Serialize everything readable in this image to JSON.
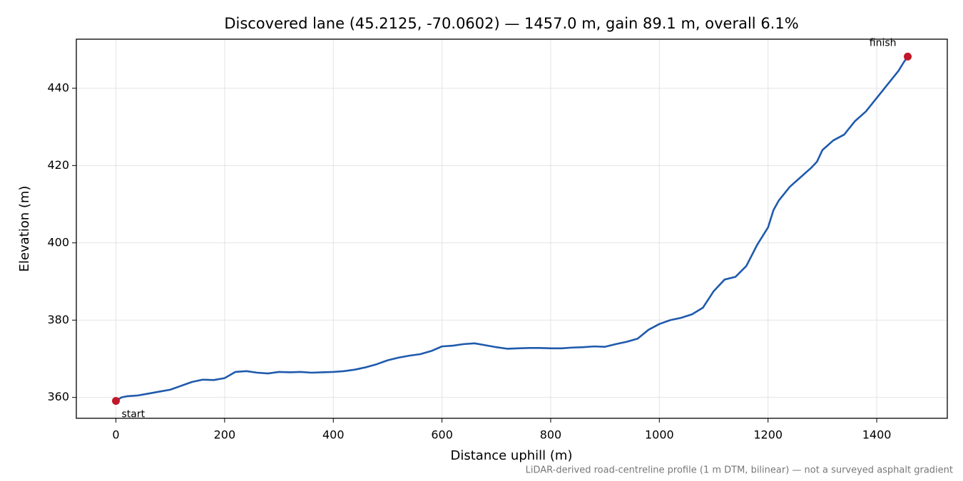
{
  "chart_data": {
    "type": "line",
    "title": "Discovered lane (45.2125, -70.0602) — 1457.0 m, gain 89.1 m, overall 6.1%",
    "x_label": "Distance uphill (m)",
    "y_label": "Elevation (m)",
    "note": "LiDAR-derived road-centreline profile (1 m DTM, bilinear) — not a surveyed asphalt gradient",
    "color": "#1f5aad",
    "grid": true,
    "x": [
      0,
      10,
      20,
      40,
      60,
      80,
      100,
      120,
      140,
      160,
      180,
      200,
      220,
      240,
      260,
      280,
      300,
      320,
      340,
      360,
      380,
      400,
      420,
      440,
      460,
      480,
      500,
      520,
      540,
      560,
      580,
      600,
      620,
      640,
      660,
      680,
      700,
      720,
      740,
      760,
      780,
      800,
      820,
      840,
      860,
      880,
      900,
      920,
      940,
      960,
      980,
      1000,
      1020,
      1040,
      1060,
      1080,
      1100,
      1120,
      1140,
      1160,
      1180,
      1200,
      1210,
      1220,
      1240,
      1260,
      1280,
      1290,
      1300,
      1320,
      1340,
      1360,
      1380,
      1400,
      1420,
      1440,
      1450,
      1457
    ],
    "values": [
      359.1,
      360,
      360.3,
      360.5,
      361,
      361.5,
      362,
      363,
      364,
      364.6,
      364.5,
      365,
      366.6,
      366.8,
      366.4,
      366.2,
      366.6,
      366.5,
      366.6,
      366.4,
      366.5,
      366.6,
      366.8,
      367.2,
      367.8,
      368.6,
      369.6,
      370.3,
      370.8,
      371.2,
      372,
      373.2,
      373.4,
      373.8,
      374,
      373.5,
      373,
      372.6,
      372.7,
      372.8,
      372.8,
      372.7,
      372.7,
      372.9,
      373,
      373.2,
      373.1,
      373.8,
      374.4,
      375.2,
      377.5,
      379,
      380,
      380.6,
      381.5,
      383.2,
      387.5,
      390.5,
      391.2,
      394,
      399.5,
      404,
      408.5,
      411,
      414.5,
      417,
      419.5,
      421,
      424,
      426.5,
      428,
      431.5,
      434,
      437.5,
      441,
      444.5,
      446.8,
      448.2
    ],
    "xlim": [
      -72.85,
      1529.85
    ],
    "ylim": [
      354.6,
      452.7
    ],
    "xticks": [
      0,
      200,
      400,
      600,
      800,
      1000,
      1200,
      1400
    ],
    "yticks": [
      360,
      380,
      400,
      420,
      440
    ],
    "annotations": [
      {
        "text": "start",
        "x": 0,
        "y": 359.1,
        "color": "#c0182a"
      },
      {
        "text": "finish",
        "x": 1457,
        "y": 448.2,
        "color": "#c0182a"
      }
    ]
  }
}
